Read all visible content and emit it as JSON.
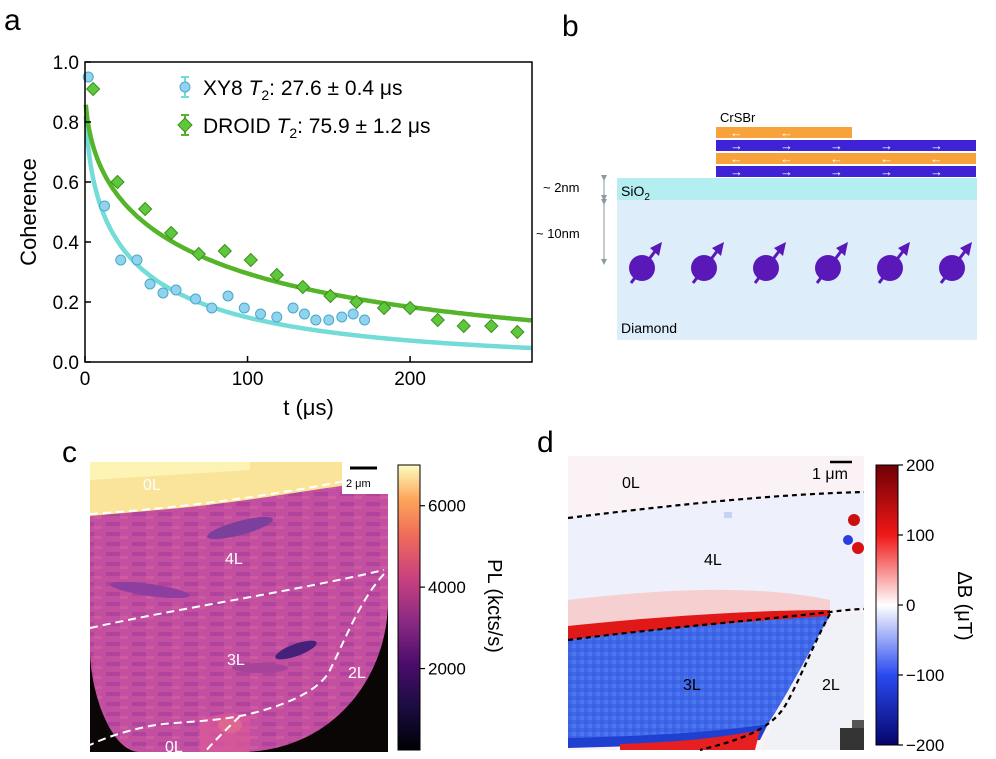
{
  "panels": {
    "a": {
      "label": "a"
    },
    "b": {
      "label": "b"
    },
    "c": {
      "label": "c"
    },
    "d": {
      "label": "d"
    }
  },
  "colors": {
    "xy8": "#74dcd8",
    "xy8_marker": "#8fd3ee",
    "droid": "#55b52a",
    "droid_marker": "#5ec83c",
    "crsbr_orange": "#f7a23a",
    "crsbr_blue": "#3f22d6",
    "sio2": "#b5eef0",
    "diamond": "#ddeefa",
    "spin": "#5a18b8"
  },
  "chart_data": {
    "type": "scatter",
    "xlabel": "t (μs)",
    "ylabel": "Coherence",
    "xlim": [
      0,
      275
    ],
    "ylim": [
      0,
      1.0
    ],
    "xticks": [
      "0",
      "100",
      "200"
    ],
    "xtick_values": [
      0,
      100,
      200
    ],
    "yticks": [
      "0.0",
      "0.2",
      "0.4",
      "0.6",
      "0.8",
      "1.0"
    ],
    "ytick_values": [
      0,
      0.2,
      0.4,
      0.6,
      0.8,
      1.0
    ],
    "series": [
      {
        "name": "XY8",
        "legend_prefix": "XY8 ",
        "legend_t": "T",
        "legend_sub": "2",
        "legend_value": ": 27.6 ± 0.4 μs",
        "marker": "circle",
        "x": [
          2,
          12,
          22,
          32,
          40,
          48,
          56,
          68,
          78,
          88,
          98,
          108,
          118,
          128,
          135,
          142,
          150,
          158,
          165,
          172
        ],
        "y": [
          0.95,
          0.52,
          0.34,
          0.34,
          0.26,
          0.23,
          0.24,
          0.21,
          0.18,
          0.22,
          0.18,
          0.16,
          0.15,
          0.18,
          0.16,
          0.14,
          0.14,
          0.15,
          0.16,
          0.14
        ],
        "fit": {
          "A": 0.95,
          "T": 27.6,
          "n": 0.48
        }
      },
      {
        "name": "DROID",
        "legend_prefix": "DROID ",
        "legend_t": "T",
        "legend_sub": "2",
        "legend_value": ": 75.9 ± 1.2 μs",
        "marker": "diamond",
        "x": [
          5,
          20,
          37,
          53,
          70,
          86,
          102,
          118,
          134,
          151,
          167,
          184,
          200,
          217,
          233,
          250,
          266
        ],
        "y": [
          0.91,
          0.6,
          0.51,
          0.43,
          0.36,
          0.37,
          0.34,
          0.29,
          0.25,
          0.22,
          0.2,
          0.18,
          0.18,
          0.14,
          0.12,
          0.12,
          0.1
        ],
        "fit": {
          "A": 0.93,
          "T": 75.9,
          "n": 0.5
        }
      }
    ]
  },
  "schematic": {
    "material_label": "CrSBr",
    "sio2_label_main": "SiO",
    "sio2_label_sub": "2",
    "diamond_label": "Diamond",
    "thickness_sio2": "~ 2nm",
    "thickness_depth": "~ 10nm",
    "arrow_rows": [
      "←",
      "→",
      "←",
      "→"
    ]
  },
  "map_c": {
    "scalebar_label": "2 μm",
    "regions": [
      "0L",
      "4L",
      "3L",
      "2L",
      "0L"
    ],
    "colorbar_label": "PL (kcts/s)",
    "colorbar_ticks": [
      "6000",
      "4000",
      "2000"
    ],
    "colorbar_tick_values": [
      6000,
      4000,
      2000
    ],
    "colorbar_range": [
      0,
      7000
    ]
  },
  "map_d": {
    "scalebar_label": "1 μm",
    "regions": [
      "0L",
      "4L",
      "3L",
      "2L"
    ],
    "colorbar_label": "ΔB (μT)",
    "colorbar_ticks": [
      "200",
      "100",
      "0",
      "−100",
      "−200"
    ],
    "colorbar_tick_values": [
      200,
      100,
      0,
      -100,
      -200
    ],
    "colorbar_range": [
      -200,
      200
    ]
  }
}
